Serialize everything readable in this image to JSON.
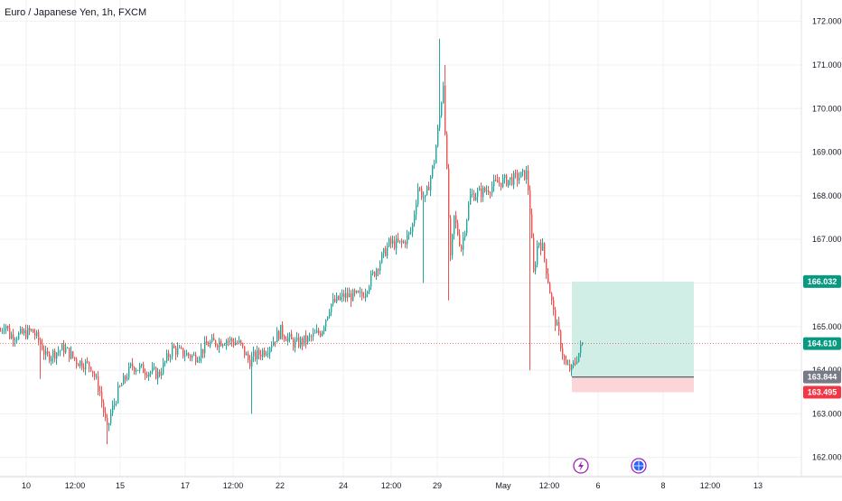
{
  "title": "Euro / Japanese Yen, 1h, FXCM",
  "colors": {
    "up": "#26a69a",
    "down": "#ef5350",
    "grid": "#eef0f3",
    "target_zone": "#d0ede6",
    "stop_zone": "#fbd5d7",
    "target_label": "#089981",
    "stop_label": "#f23645",
    "entry_label": "#787b86",
    "price_label": "#089981",
    "price_line": "#ef5350",
    "entry_line": "#5d606b"
  },
  "chart_data": {
    "type": "candlestick",
    "instrument": "Euro / Japanese Yen",
    "interval": "1h",
    "source": "FXCM",
    "ylim": [
      161.6,
      172.2
    ],
    "y_ticks": [
      "162.000",
      "163.000",
      "164.000",
      "165.000",
      "166.000",
      "167.000",
      "168.000",
      "169.000",
      "170.000",
      "171.000",
      "172.000"
    ],
    "x_ticks": [
      "10",
      "12:00",
      "15",
      "17",
      "12:00",
      "22",
      "24",
      "12:00",
      "29",
      "May",
      "12:00",
      "6",
      "8",
      "12:00",
      "13"
    ],
    "price_path": [
      [
        0,
        164.9
      ],
      [
        5,
        165.1
      ],
      [
        10,
        164.8
      ],
      [
        20,
        164.8
      ],
      [
        35,
        164.9
      ],
      [
        45,
        164.6
      ],
      [
        50,
        164.3
      ],
      [
        70,
        164.5
      ],
      [
        85,
        164.2
      ],
      [
        100,
        164.1
      ],
      [
        110,
        163.5
      ],
      [
        118,
        162.6
      ],
      [
        122,
        163.0
      ],
      [
        130,
        163.5
      ],
      [
        145,
        164.1
      ],
      [
        160,
        164.0
      ],
      [
        175,
        163.9
      ],
      [
        190,
        164.5
      ],
      [
        200,
        164.4
      ],
      [
        215,
        164.3
      ],
      [
        230,
        164.6
      ],
      [
        250,
        164.7
      ],
      [
        265,
        164.6
      ],
      [
        275,
        164.2
      ],
      [
        280,
        164.3
      ],
      [
        295,
        164.5
      ],
      [
        310,
        164.9
      ],
      [
        325,
        164.6
      ],
      [
        340,
        164.7
      ],
      [
        355,
        164.9
      ],
      [
        365,
        165.5
      ],
      [
        380,
        165.7
      ],
      [
        400,
        165.7
      ],
      [
        415,
        166.3
      ],
      [
        430,
        166.9
      ],
      [
        445,
        166.9
      ],
      [
        455,
        167.2
      ],
      [
        462,
        168.2
      ],
      [
        470,
        167.9
      ],
      [
        480,
        168.8
      ],
      [
        487,
        170.0
      ],
      [
        490,
        170.6
      ],
      [
        494,
        168.5
      ],
      [
        498,
        166.5
      ],
      [
        502,
        167.5
      ],
      [
        510,
        166.8
      ],
      [
        520,
        168.0
      ],
      [
        535,
        168.1
      ],
      [
        550,
        168.3
      ],
      [
        570,
        168.4
      ],
      [
        582,
        168.5
      ],
      [
        585,
        168.0
      ],
      [
        590,
        166.2
      ],
      [
        595,
        167.0
      ],
      [
        600,
        166.8
      ],
      [
        605,
        166.2
      ],
      [
        612,
        165.3
      ],
      [
        618,
        164.8
      ],
      [
        625,
        164.1
      ],
      [
        632,
        164.0
      ],
      [
        640,
        164.4
      ],
      [
        644,
        164.61
      ]
    ],
    "spikes": [
      {
        "x": 45,
        "low": 163.8
      },
      {
        "x": 118,
        "low": 162.3
      },
      {
        "x": 278,
        "low": 163.0
      },
      {
        "x": 468,
        "low": 166.0
      },
      {
        "x": 487,
        "high": 171.6
      },
      {
        "x": 492,
        "high": 171.0
      },
      {
        "x": 496,
        "low": 165.6
      },
      {
        "x": 587,
        "low": 164.0
      },
      {
        "x": 585,
        "high": 168.7
      }
    ],
    "position": {
      "type": "long",
      "target": 166.032,
      "entry": 163.844,
      "stop": 163.495,
      "labels": {
        "target": "166.032",
        "entry": "163.844",
        "stop": "163.495"
      }
    },
    "current_price": 164.61,
    "current_price_label": "164.610",
    "event_icons": [
      "flash-icon",
      "globe-icon"
    ]
  }
}
